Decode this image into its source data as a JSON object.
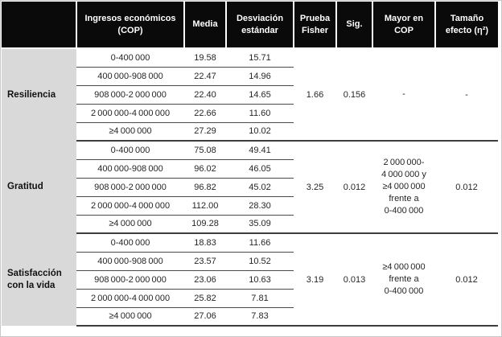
{
  "colors": {
    "header_bg": "#0a0a0a",
    "header_text": "#ffffff",
    "label_column_bg": "#d9d9d9",
    "body_text": "#262626",
    "rule_line": "#4a4a4a"
  },
  "headers": {
    "empty": "",
    "ingresos": "Ingresos económicos (COP)",
    "media": "Media",
    "sd": "Desviación estándar",
    "fisher": "Prueba Fisher",
    "sig": "Sig.",
    "mayor": "Mayor en COP",
    "effect": "Tamaño efecto (η²)"
  },
  "sections": [
    {
      "variable": "Resiliencia",
      "rows": [
        {
          "range": "0-400 000",
          "media": "19.58",
          "sd": "15.71"
        },
        {
          "range": "400 000-908 000",
          "media": "22.47",
          "sd": "14.96"
        },
        {
          "range": "908 000-2 000 000",
          "media": "22.40",
          "sd": "14.65"
        },
        {
          "range": "2 000 000-4 000 000",
          "media": "22.66",
          "sd": "11.60"
        },
        {
          "range": "≥4 000 000",
          "media": "27.29",
          "sd": "10.02"
        }
      ],
      "fisher": "1.66",
      "sig": "0.156",
      "mayor": "-",
      "effect": "-"
    },
    {
      "variable": "Gratitud",
      "rows": [
        {
          "range": "0-400 000",
          "media": "75.08",
          "sd": "49.41"
        },
        {
          "range": "400 000-908 000",
          "media": "96.02",
          "sd": "46.05"
        },
        {
          "range": "908 000-2 000 000",
          "media": "96.82",
          "sd": "45.02"
        },
        {
          "range": "2 000 000-4 000 000",
          "media": "112.00",
          "sd": "28.30"
        },
        {
          "range": "≥4 000 000",
          "media": "109.28",
          "sd": "35.09"
        }
      ],
      "fisher": "3.25",
      "sig": "0.012",
      "mayor": "2 000 000-\n4 000 000 y\n≥4 000 000\nfrente a\n0-400 000",
      "effect": "0.012"
    },
    {
      "variable": "Satisfacción con la vida",
      "rows": [
        {
          "range": "0-400 000",
          "media": "18.83",
          "sd": "11.66"
        },
        {
          "range": "400 000-908 000",
          "media": "23.57",
          "sd": "10.52"
        },
        {
          "range": "908 000-2 000 000",
          "media": "23.06",
          "sd": "10.63"
        },
        {
          "range": "2 000 000-4 000 000",
          "media": "25.82",
          "sd": "7.81"
        },
        {
          "range": "≥4 000 000",
          "media": "27.06",
          "sd": "7.83"
        }
      ],
      "fisher": "3.19",
      "sig": "0.013",
      "mayor": "≥4 000 000\nfrente a\n0-400 000",
      "effect": "0.012"
    }
  ]
}
